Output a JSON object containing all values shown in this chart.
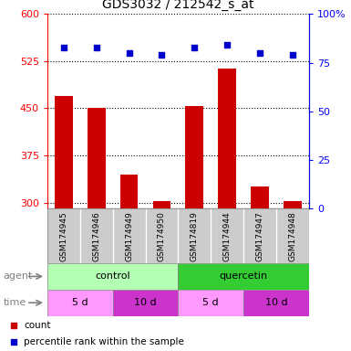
{
  "title": "GDS3032 / 212542_s_at",
  "samples": [
    "GSM174945",
    "GSM174946",
    "GSM174949",
    "GSM174950",
    "GSM174819",
    "GSM174944",
    "GSM174947",
    "GSM174948"
  ],
  "counts": [
    470,
    450,
    345,
    302,
    453,
    513,
    325,
    302
  ],
  "percentile_ranks": [
    83,
    83,
    80,
    79,
    83,
    84,
    80,
    79
  ],
  "ylim_left": [
    290,
    600
  ],
  "ylim_right": [
    0,
    100
  ],
  "yticks_left": [
    300,
    375,
    450,
    525,
    600
  ],
  "yticks_right": [
    0,
    25,
    50,
    75,
    100
  ],
  "bar_color": "#cc0000",
  "dot_color": "#0000cc",
  "bar_bottom": 290,
  "agent_control_color": "#b3ffb3",
  "agent_quercetin_color": "#33cc33",
  "time_5d_color": "#ff99ff",
  "time_10d_color": "#cc33cc",
  "sample_bg_color": "#cccccc",
  "agent_label": "agent",
  "time_label": "time",
  "control_label": "control",
  "quercetin_label": "quercetin",
  "time_5d_label": "5 d",
  "time_10d_label": "10 d",
  "legend_count_label": "count",
  "legend_pct_label": "percentile rank within the sample",
  "title_fontsize": 10,
  "tick_fontsize": 8,
  "label_fontsize": 8,
  "sample_fontsize": 6.5,
  "legend_fontsize": 7.5
}
